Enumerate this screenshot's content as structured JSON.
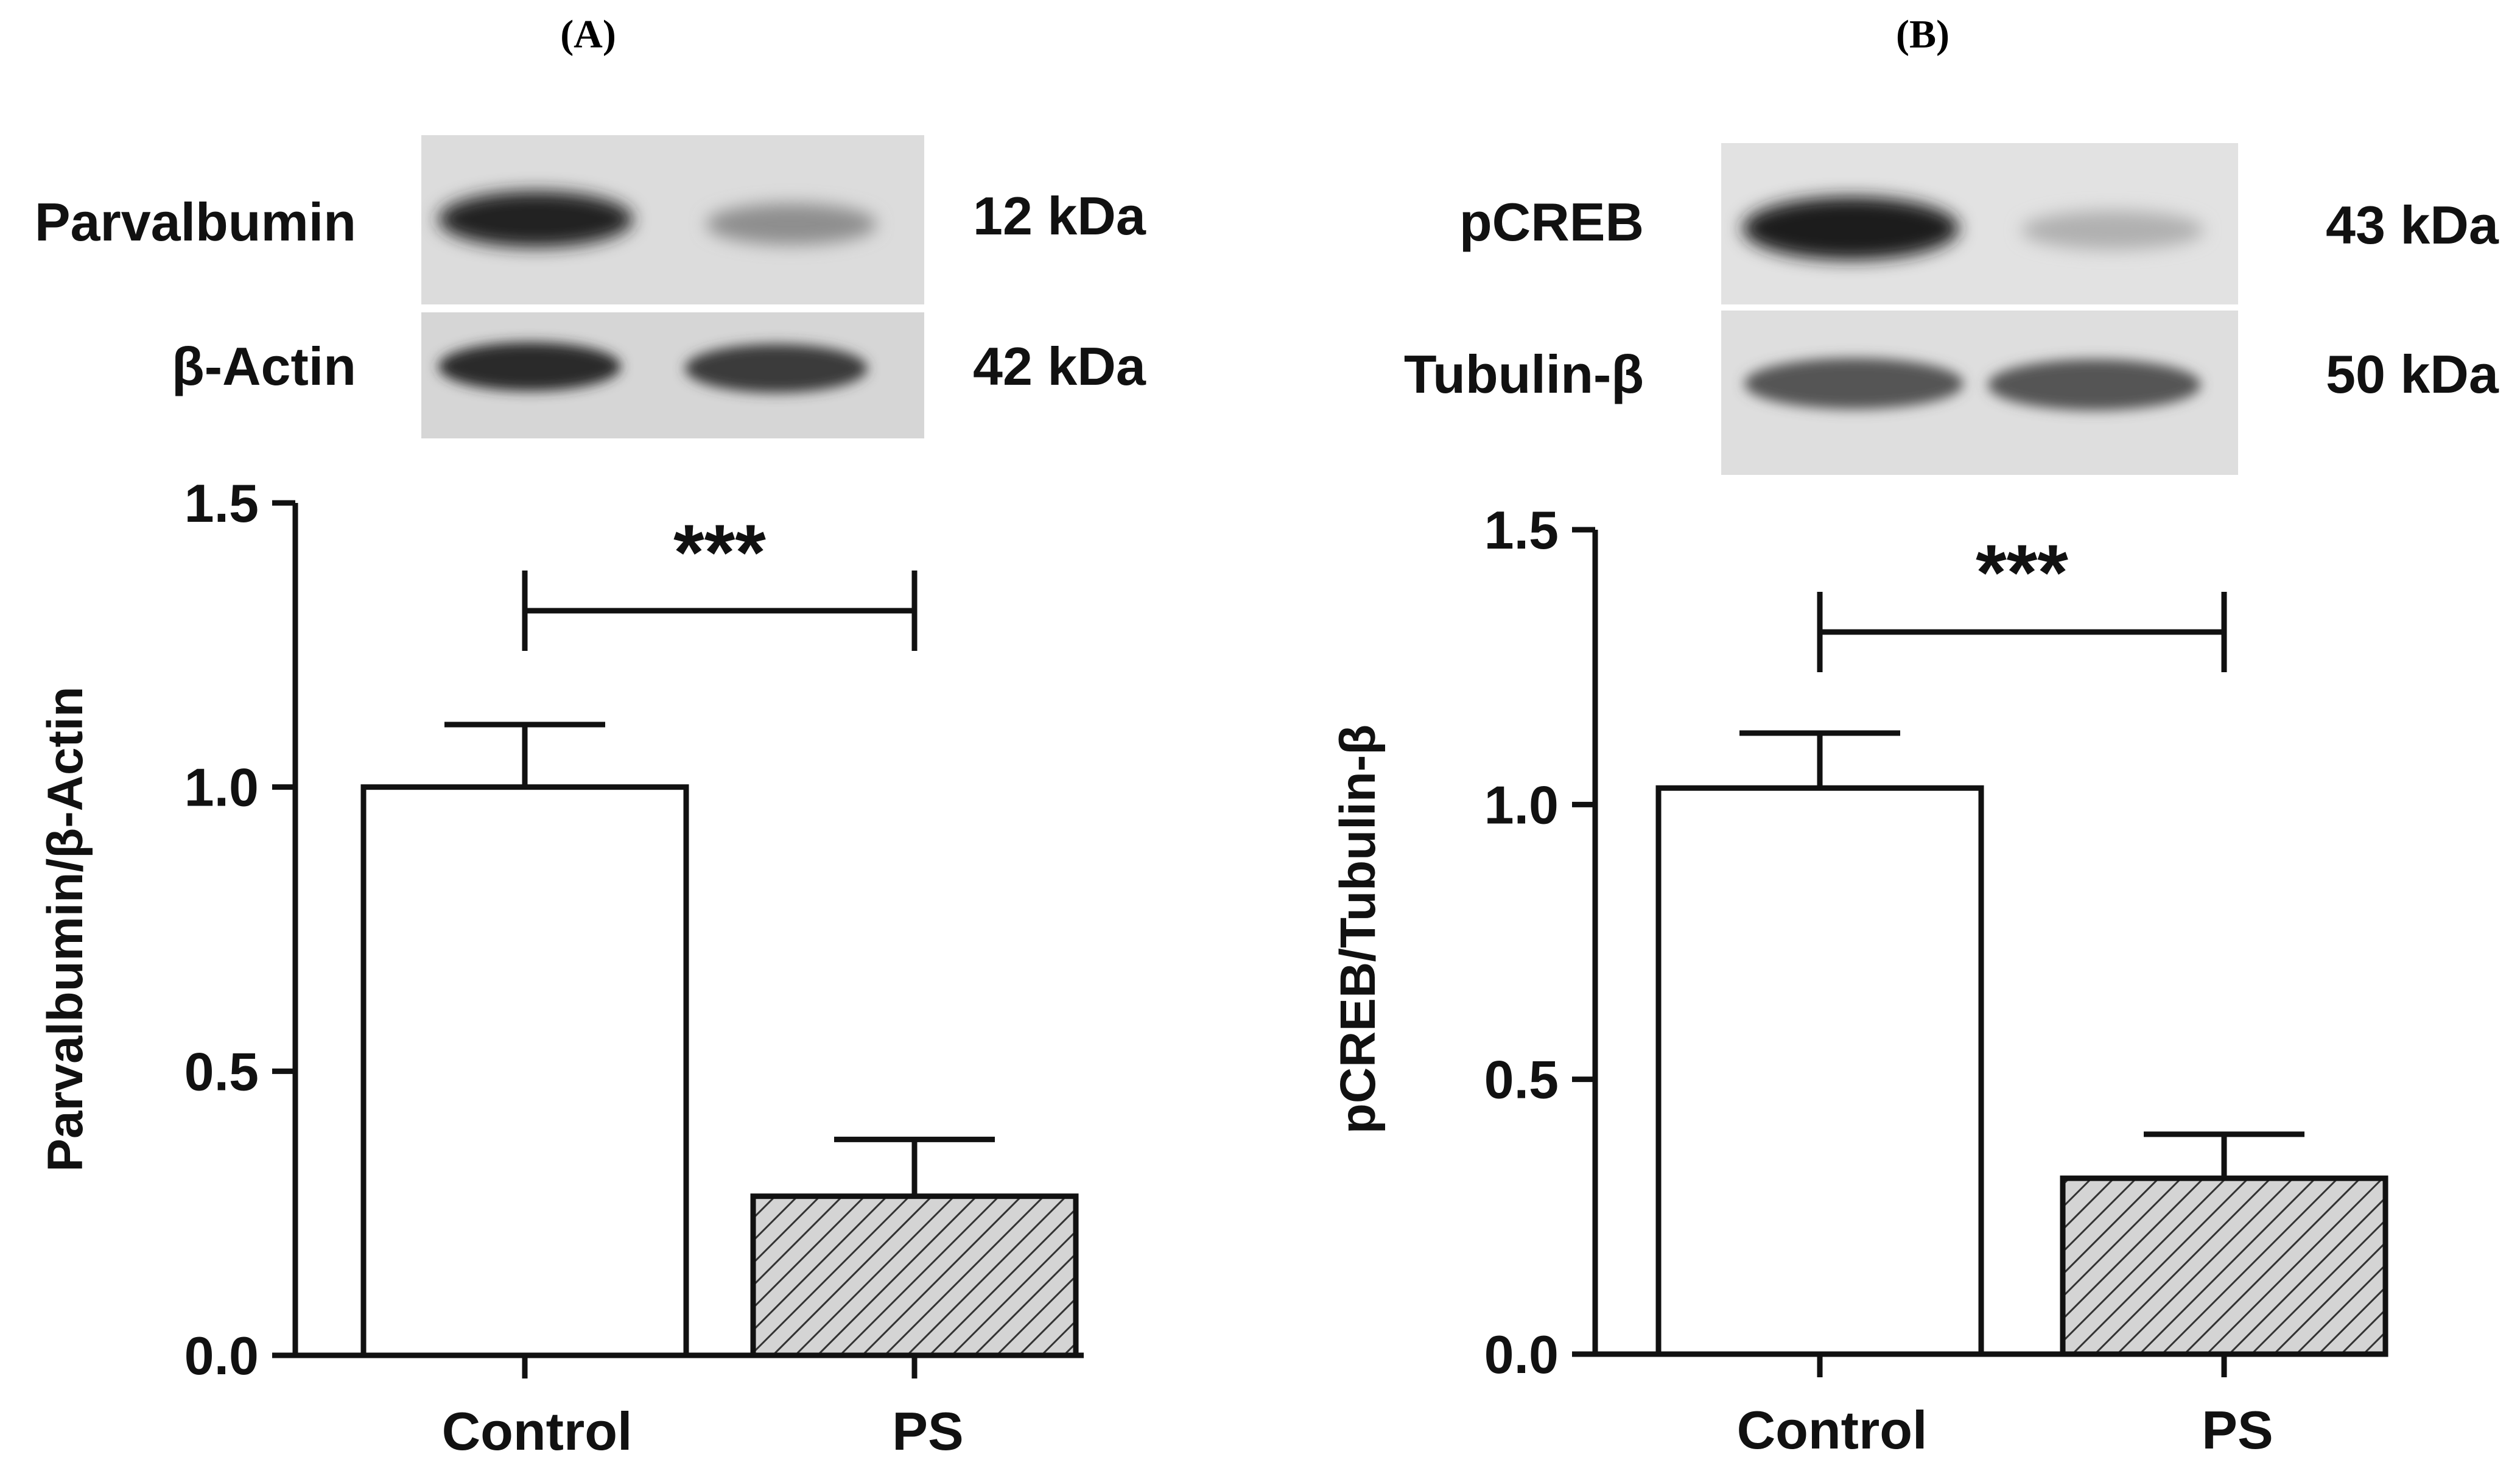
{
  "figure": {
    "panel_a_label": "(A)",
    "panel_b_label": "(B)"
  },
  "blots": {
    "a": {
      "target_label": "Parvalbumin",
      "target_kda": "12 kDa",
      "control_label": "β-Actin",
      "control_kda": "42 kDa"
    },
    "b": {
      "target_label": "pCREB",
      "target_kda": "43 kDa",
      "control_label": "Tubulin-β",
      "control_kda": "50 kDa"
    }
  },
  "chart_data": [
    {
      "type": "bar",
      "panel": "A",
      "categories": [
        "Control",
        "PS"
      ],
      "values": [
        1.0,
        0.28
      ],
      "errors": [
        0.11,
        0.1
      ],
      "ylabel": "Parvalbumin/β-Actin",
      "xlabel": "",
      "ylim": [
        0,
        1.5
      ],
      "yticks": [
        "0.0",
        "0.5",
        "1.0",
        "1.5"
      ],
      "significance": "***",
      "bar_fill": [
        "#ffffff",
        "hatched-gray"
      ]
    },
    {
      "type": "bar",
      "panel": "B",
      "categories": [
        "Control",
        "PS"
      ],
      "values": [
        1.03,
        0.32
      ],
      "errors": [
        0.1,
        0.08
      ],
      "ylabel": "pCREB/Tubulin-β",
      "xlabel": "",
      "ylim": [
        0,
        1.5
      ],
      "yticks": [
        "0.0",
        "0.5",
        "1.0",
        "1.5"
      ],
      "significance": "***",
      "bar_fill": [
        "#ffffff",
        "hatched-gray"
      ]
    }
  ]
}
